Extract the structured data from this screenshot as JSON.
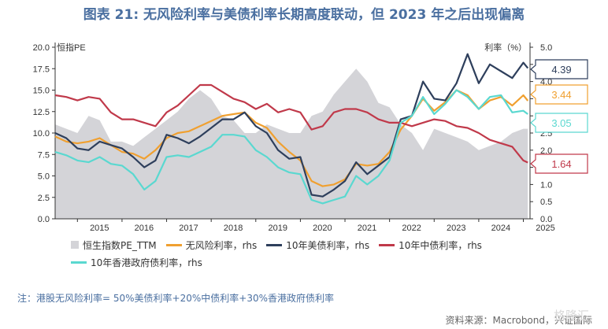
{
  "page": {
    "title": "图表 21: 无风险利率与美债利率长期高度联动，但 2023 年之后出现偏离",
    "footnote": "注：港股无风险利率= 50%美债利率+20%中债利率+30%香港政府债利率",
    "source": "资料来源：Macrobond，兴证国际",
    "watermark": "格隆汇"
  },
  "colors": {
    "title": "#4a6fa0",
    "pe_area": "#d4d4d8",
    "rf": "#f0a030",
    "us10y": "#2e3f5c",
    "cn10y": "#c0394a",
    "hk10y": "#5ad8d0"
  },
  "chart_data": {
    "type": "line",
    "left_axis": {
      "label": "恒指PE",
      "ylim": [
        0,
        20
      ],
      "ticks": [
        "0.0",
        "2.5",
        "5.0",
        "7.5",
        "10.0",
        "12.5",
        "15.0",
        "17.5",
        "20.0"
      ]
    },
    "right_axis": {
      "label": "利率（%）",
      "ylim": [
        0,
        5
      ],
      "ticks": [
        "0.0",
        "0.5",
        "1.0",
        "1.5",
        "2.0",
        "2.5",
        "3.0",
        "3.5",
        "4.0",
        "4.5",
        "5.0"
      ]
    },
    "x_ticks": [
      "2015",
      "2016",
      "2017",
      "2018",
      "2019",
      "2020",
      "2021",
      "2022",
      "2023",
      "2024",
      "2025"
    ],
    "grid": false,
    "series": [
      {
        "key": "pe",
        "name": "恒生指数PE_TTM",
        "axis": "left",
        "style": "area",
        "x": [
          2014.5,
          2014.75,
          2015.0,
          2015.25,
          2015.5,
          2015.75,
          2016.0,
          2016.25,
          2016.5,
          2016.75,
          2017.0,
          2017.25,
          2017.5,
          2017.75,
          2018.0,
          2018.25,
          2018.5,
          2018.75,
          2019.0,
          2019.25,
          2019.5,
          2019.75,
          2020.0,
          2020.25,
          2020.5,
          2020.75,
          2021.0,
          2021.25,
          2021.5,
          2021.75,
          2022.0,
          2022.25,
          2022.5,
          2022.75,
          2023.0,
          2023.25,
          2023.5,
          2023.75,
          2024.0,
          2024.25,
          2024.5,
          2024.75,
          2025.0,
          2025.1
        ],
        "values": [
          11.0,
          10.5,
          10.0,
          12.0,
          11.5,
          9.0,
          9.0,
          8.5,
          9.5,
          10.5,
          11.5,
          12.5,
          14.0,
          15.0,
          14.0,
          12.0,
          11.5,
          10.0,
          10.0,
          11.0,
          10.5,
          10.0,
          10.0,
          12.0,
          12.5,
          14.5,
          16.0,
          17.5,
          16.0,
          13.5,
          13.0,
          11.0,
          10.0,
          8.0,
          10.5,
          10.0,
          9.5,
          9.0,
          8.0,
          8.5,
          9.0,
          10.0,
          10.5,
          10.5
        ]
      },
      {
        "key": "rf",
        "name": "无风险利率，rhs",
        "axis": "right",
        "style": "line",
        "x": [
          2014.5,
          2014.75,
          2015.0,
          2015.25,
          2015.5,
          2015.75,
          2016.0,
          2016.25,
          2016.5,
          2016.75,
          2017.0,
          2017.25,
          2017.5,
          2017.75,
          2018.0,
          2018.25,
          2018.5,
          2018.75,
          2019.0,
          2019.25,
          2019.5,
          2019.75,
          2020.0,
          2020.25,
          2020.5,
          2020.75,
          2021.0,
          2021.25,
          2021.5,
          2021.75,
          2022.0,
          2022.25,
          2022.5,
          2022.75,
          2023.0,
          2023.25,
          2023.5,
          2023.75,
          2024.0,
          2024.25,
          2024.5,
          2024.75,
          2025.0,
          2025.1
        ],
        "values": [
          2.4,
          2.25,
          2.2,
          2.25,
          2.35,
          2.15,
          1.95,
          1.9,
          1.75,
          2.0,
          2.35,
          2.5,
          2.55,
          2.7,
          2.85,
          3.0,
          3.05,
          3.1,
          2.8,
          2.65,
          2.25,
          1.95,
          1.7,
          1.1,
          0.95,
          1.0,
          1.15,
          1.6,
          1.55,
          1.6,
          1.95,
          2.6,
          3.0,
          3.5,
          3.15,
          3.4,
          3.75,
          3.6,
          3.2,
          3.45,
          3.55,
          3.3,
          3.6,
          3.44
        ]
      },
      {
        "key": "us10y",
        "name": "10年美债利率，rhs",
        "axis": "right",
        "style": "line",
        "x": [
          2014.5,
          2014.75,
          2015.0,
          2015.25,
          2015.5,
          2015.75,
          2016.0,
          2016.25,
          2016.5,
          2016.75,
          2017.0,
          2017.25,
          2017.5,
          2017.75,
          2018.0,
          2018.25,
          2018.5,
          2018.75,
          2019.0,
          2019.25,
          2019.5,
          2019.75,
          2020.0,
          2020.25,
          2020.5,
          2020.75,
          2021.0,
          2021.25,
          2021.5,
          2021.75,
          2022.0,
          2022.25,
          2022.5,
          2022.75,
          2023.0,
          2023.25,
          2023.5,
          2023.75,
          2024.0,
          2024.25,
          2024.5,
          2024.75,
          2025.0,
          2025.1
        ],
        "values": [
          2.5,
          2.35,
          2.05,
          2.0,
          2.25,
          2.15,
          2.05,
          1.8,
          1.5,
          1.7,
          2.45,
          2.35,
          2.2,
          2.4,
          2.65,
          2.9,
          2.9,
          3.1,
          2.7,
          2.5,
          2.0,
          1.75,
          1.8,
          0.7,
          0.65,
          0.85,
          1.1,
          1.65,
          1.3,
          1.55,
          1.8,
          2.9,
          3.0,
          4.0,
          3.5,
          3.45,
          3.95,
          4.8,
          3.95,
          4.5,
          4.3,
          4.1,
          4.55,
          4.39
        ]
      },
      {
        "key": "cn10y",
        "name": "10年中债利率，rhs",
        "axis": "right",
        "style": "line",
        "x": [
          2014.5,
          2014.75,
          2015.0,
          2015.25,
          2015.5,
          2015.75,
          2016.0,
          2016.25,
          2016.5,
          2016.75,
          2017.0,
          2017.25,
          2017.5,
          2017.75,
          2018.0,
          2018.25,
          2018.5,
          2018.75,
          2019.0,
          2019.25,
          2019.5,
          2019.75,
          2020.0,
          2020.25,
          2020.5,
          2020.75,
          2021.0,
          2021.25,
          2021.5,
          2021.75,
          2022.0,
          2022.25,
          2022.5,
          2022.75,
          2023.0,
          2023.25,
          2023.5,
          2023.75,
          2024.0,
          2024.25,
          2024.5,
          2024.75,
          2025.0,
          2025.1
        ],
        "values": [
          3.6,
          3.55,
          3.45,
          3.55,
          3.5,
          3.1,
          2.9,
          2.9,
          2.8,
          2.7,
          3.1,
          3.3,
          3.6,
          3.9,
          3.9,
          3.7,
          3.5,
          3.4,
          3.2,
          3.35,
          3.1,
          3.2,
          3.1,
          2.6,
          2.7,
          3.1,
          3.2,
          3.2,
          3.1,
          2.9,
          2.8,
          2.8,
          2.7,
          2.8,
          2.9,
          2.85,
          2.7,
          2.65,
          2.5,
          2.3,
          2.2,
          2.1,
          1.7,
          1.64
        ]
      },
      {
        "key": "hk10y",
        "name": "10年香港政府债利率，rhs",
        "axis": "right",
        "style": "line",
        "x": [
          2014.5,
          2014.75,
          2015.0,
          2015.25,
          2015.5,
          2015.75,
          2016.0,
          2016.25,
          2016.5,
          2016.75,
          2017.0,
          2017.25,
          2017.5,
          2017.75,
          2018.0,
          2018.25,
          2018.5,
          2018.75,
          2019.0,
          2019.25,
          2019.5,
          2019.75,
          2020.0,
          2020.25,
          2020.5,
          2020.75,
          2021.0,
          2021.25,
          2021.5,
          2021.75,
          2022.0,
          2022.25,
          2022.5,
          2022.75,
          2023.0,
          2023.25,
          2023.5,
          2023.75,
          2024.0,
          2024.25,
          2024.5,
          2024.75,
          2025.0,
          2025.1
        ],
        "values": [
          1.95,
          1.85,
          1.7,
          1.65,
          1.8,
          1.6,
          1.55,
          1.3,
          0.85,
          1.1,
          1.8,
          1.85,
          1.8,
          1.95,
          2.1,
          2.45,
          2.45,
          2.4,
          2.0,
          1.8,
          1.5,
          1.35,
          1.3,
          0.55,
          0.45,
          0.55,
          0.65,
          1.25,
          1.0,
          1.25,
          1.7,
          2.8,
          3.0,
          3.55,
          3.05,
          3.35,
          3.75,
          3.55,
          3.2,
          3.55,
          3.6,
          3.1,
          3.15,
          3.05
        ]
      }
    ],
    "end_labels": [
      {
        "series": "us10y",
        "text": "4.39",
        "value": 4.39
      },
      {
        "series": "rf",
        "text": "3.44",
        "value": 3.44
      },
      {
        "series": "hk10y",
        "text": "3.05",
        "value": 3.05
      },
      {
        "series": "cn10y",
        "text": "1.64",
        "value": 1.64
      }
    ]
  }
}
